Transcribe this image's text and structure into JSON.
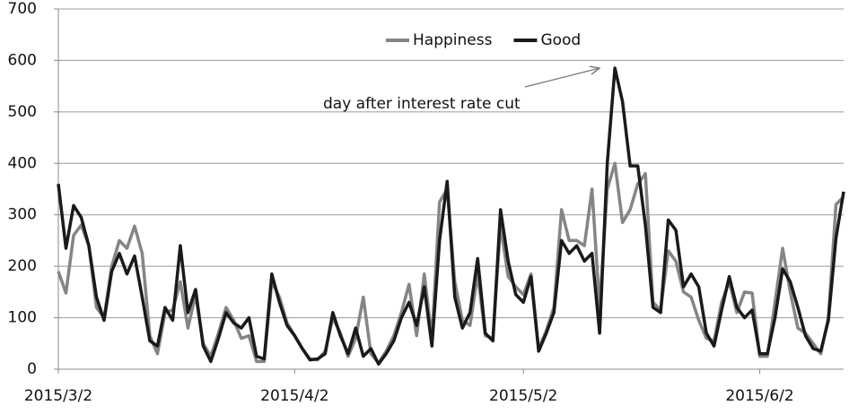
{
  "chart_data": {
    "type": "line",
    "x": [
      "2015/3/2",
      "2015/3/3",
      "2015/3/4",
      "2015/3/5",
      "2015/3/6",
      "2015/3/7",
      "2015/3/8",
      "2015/3/9",
      "2015/3/10",
      "2015/3/11",
      "2015/3/12",
      "2015/3/13",
      "2015/3/14",
      "2015/3/15",
      "2015/3/16",
      "2015/3/17",
      "2015/3/18",
      "2015/3/19",
      "2015/3/20",
      "2015/3/21",
      "2015/3/22",
      "2015/3/23",
      "2015/3/24",
      "2015/3/25",
      "2015/3/26",
      "2015/3/27",
      "2015/3/28",
      "2015/3/29",
      "2015/3/30",
      "2015/3/31",
      "2015/4/1",
      "2015/4/2",
      "2015/4/3",
      "2015/4/4",
      "2015/4/5",
      "2015/4/6",
      "2015/4/7",
      "2015/4/8",
      "2015/4/9",
      "2015/4/10",
      "2015/4/11",
      "2015/4/12",
      "2015/4/13",
      "2015/4/14",
      "2015/4/15",
      "2015/4/16",
      "2015/4/17",
      "2015/4/18",
      "2015/4/19",
      "2015/4/20",
      "2015/4/21",
      "2015/4/22",
      "2015/4/23",
      "2015/4/24",
      "2015/4/25",
      "2015/4/26",
      "2015/4/27",
      "2015/4/28",
      "2015/4/29",
      "2015/4/30",
      "2015/5/1",
      "2015/5/2",
      "2015/5/3",
      "2015/5/4",
      "2015/5/5",
      "2015/5/6",
      "2015/5/7",
      "2015/5/8",
      "2015/5/9",
      "2015/5/10",
      "2015/5/11",
      "2015/5/12",
      "2015/5/13",
      "2015/5/14",
      "2015/5/15",
      "2015/5/16",
      "2015/5/17",
      "2015/5/18",
      "2015/5/19",
      "2015/5/20",
      "2015/5/21",
      "2015/5/22",
      "2015/5/23",
      "2015/5/24",
      "2015/5/25",
      "2015/5/26",
      "2015/5/27",
      "2015/5/28",
      "2015/5/29",
      "2015/5/30",
      "2015/5/31",
      "2015/6/1",
      "2015/6/2",
      "2015/6/3",
      "2015/6/4",
      "2015/6/5",
      "2015/6/6",
      "2015/6/7",
      "2015/6/8",
      "2015/6/9",
      "2015/6/10",
      "2015/6/11",
      "2015/6/12",
      "2015/6/13"
    ],
    "series": [
      {
        "name": "Happiness",
        "color": "#858585",
        "values": [
          190,
          148,
          260,
          280,
          240,
          120,
          100,
          200,
          250,
          235,
          278,
          225,
          65,
          30,
          110,
          115,
          170,
          80,
          145,
          50,
          25,
          70,
          120,
          95,
          60,
          65,
          15,
          15,
          170,
          140,
          90,
          65,
          40,
          20,
          18,
          35,
          100,
          70,
          25,
          60,
          140,
          30,
          12,
          35,
          65,
          110,
          165,
          65,
          185,
          60,
          325,
          350,
          170,
          95,
          85,
          185,
          65,
          60,
          280,
          180,
          160,
          145,
          185,
          40,
          75,
          120,
          310,
          250,
          250,
          240,
          350,
          120,
          350,
          400,
          285,
          310,
          360,
          380,
          130,
          115,
          230,
          210,
          150,
          140,
          95,
          60,
          55,
          130,
          170,
          110,
          150,
          148,
          25,
          25,
          130,
          235,
          150,
          80,
          70,
          50,
          30,
          100,
          320,
          335
        ]
      },
      {
        "name": "Good",
        "color": "#1a1a1a",
        "values": [
          360,
          235,
          318,
          295,
          240,
          140,
          95,
          190,
          225,
          185,
          220,
          140,
          55,
          45,
          120,
          95,
          240,
          110,
          155,
          45,
          15,
          60,
          110,
          90,
          80,
          100,
          25,
          20,
          185,
          130,
          85,
          65,
          40,
          18,
          20,
          30,
          110,
          65,
          30,
          80,
          25,
          40,
          10,
          30,
          55,
          100,
          130,
          85,
          160,
          45,
          250,
          365,
          140,
          80,
          110,
          215,
          70,
          55,
          310,
          210,
          145,
          130,
          180,
          35,
          70,
          110,
          250,
          225,
          240,
          210,
          225,
          70,
          400,
          585,
          520,
          395,
          395,
          280,
          120,
          110,
          290,
          270,
          160,
          185,
          160,
          70,
          45,
          115,
          180,
          120,
          100,
          115,
          30,
          30,
          100,
          195,
          170,
          120,
          65,
          40,
          35,
          95,
          255,
          345
        ]
      }
    ],
    "xlim": [
      "2015/3/2",
      "2015/6/13"
    ],
    "xticks": [
      "2015/3/2",
      "2015/4/2",
      "2015/5/2",
      "2015/6/2"
    ],
    "ylim": [
      0,
      700
    ],
    "yticks": [
      0,
      100,
      200,
      300,
      400,
      500,
      600,
      700
    ],
    "grid": true,
    "legend": "top",
    "annotation": "day after interest rate cut"
  }
}
